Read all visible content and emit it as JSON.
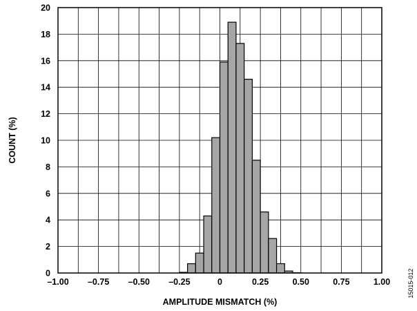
{
  "chart_data": {
    "type": "bar",
    "xlabel": "AMPLITUDE MISMATCH (%)",
    "ylabel": "COUNT (%)",
    "xlim": [
      -1.0,
      1.0
    ],
    "ylim": [
      0,
      20
    ],
    "x_ticks": [
      "–1.00",
      "–0.75",
      "–0.50",
      "–0.25",
      "0",
      "0.25",
      "0.50",
      "0.75",
      "1.00"
    ],
    "x_tick_values": [
      -1.0,
      -0.75,
      -0.5,
      -0.25,
      0,
      0.25,
      0.5,
      0.75,
      1.0
    ],
    "y_ticks": [
      "0",
      "2",
      "4",
      "6",
      "8",
      "10",
      "12",
      "14",
      "16",
      "18",
      "20"
    ],
    "y_tick_values": [
      0,
      2,
      4,
      6,
      8,
      10,
      12,
      14,
      16,
      18,
      20
    ],
    "grid": true,
    "bin_width": 0.05,
    "series": [
      {
        "bin_centers": [
          -0.225,
          -0.175,
          -0.125,
          -0.075,
          -0.025,
          0.025,
          0.075,
          0.125,
          0.175,
          0.225,
          0.275,
          0.325,
          0.375,
          0.425,
          0.475
        ],
        "values": [
          0.05,
          0.7,
          1.5,
          4.3,
          10.2,
          15.9,
          18.9,
          17.3,
          14.6,
          8.5,
          4.6,
          2.6,
          0.7,
          0.15,
          0.02
        ]
      }
    ],
    "bar_color": "#a6a6a6"
  },
  "figure_id": "15015-012"
}
